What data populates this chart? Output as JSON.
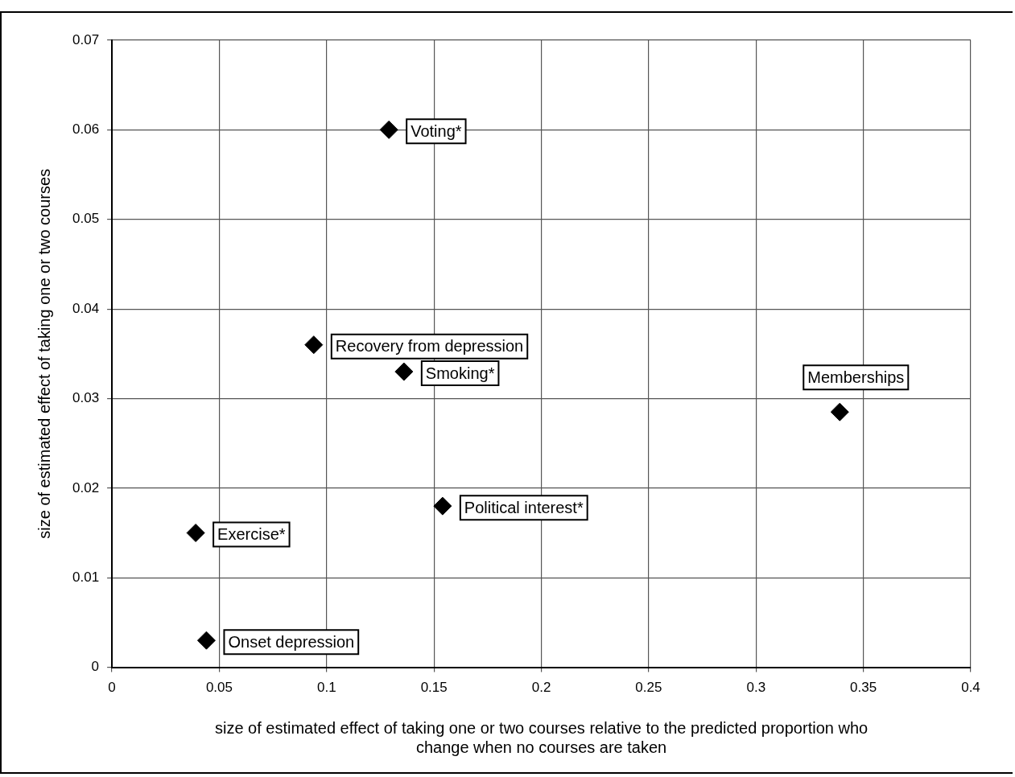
{
  "chart_data": {
    "type": "scatter",
    "xlabel": "size of estimated effect of taking one or two courses relative to the predicted proportion who change when no courses are taken",
    "ylabel": "size of estimated effect of taking one or two courses",
    "series": [
      {
        "color": "#000000",
        "x": [
          0.129,
          0.094,
          0.136,
          0.339,
          0.154,
          0.039,
          0.044
        ],
        "values": [
          0.06,
          0.036,
          0.033,
          0.0285,
          0.018,
          0.015,
          0.003
        ]
      }
    ],
    "annotations": [
      {
        "text": "Voting*",
        "x": 0.129,
        "y": 0.06
      },
      {
        "text": "Recovery from depression",
        "x": 0.094,
        "y": 0.036
      },
      {
        "text": "Smoking*",
        "x": 0.136,
        "y": 0.033
      },
      {
        "text": "Memberships",
        "x": 0.339,
        "y": 0.0285
      },
      {
        "text": "Political interest*",
        "x": 0.154,
        "y": 0.018
      },
      {
        "text": "Exercise*",
        "x": 0.039,
        "y": 0.015
      },
      {
        "text": "Onset depression",
        "x": 0.044,
        "y": 0.003
      }
    ],
    "xlim": [
      0,
      0.4
    ],
    "ylim": [
      0,
      0.07
    ],
    "xticks": [
      0,
      0.05,
      0.1,
      0.15,
      0.2,
      0.25,
      0.3,
      0.35,
      0.4
    ],
    "yticks": [
      0,
      0.01,
      0.02,
      0.03,
      0.04,
      0.05,
      0.06,
      0.07
    ],
    "grid": true,
    "legend": false,
    "marker": "diamond"
  }
}
